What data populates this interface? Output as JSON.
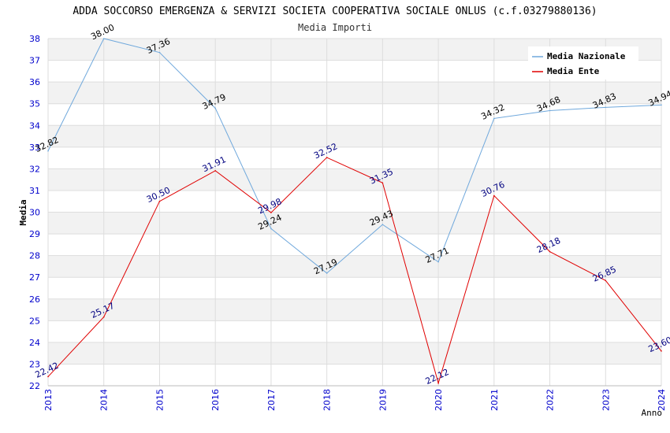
{
  "chart_data": {
    "type": "line",
    "title": "ADDA SOCCORSO EMERGENZA & SERVIZI SOCIETA COOPERATIVA SOCIALE ONLUS (c.f.03279880136)",
    "subtitle": "Media Importi",
    "xlabel": "Anno",
    "ylabel": "Media",
    "ylim": [
      22,
      38
    ],
    "yticks": [
      "22",
      "23",
      "24",
      "25",
      "26",
      "27",
      "28",
      "29",
      "30",
      "31",
      "32",
      "33",
      "34",
      "35",
      "36",
      "37",
      "38"
    ],
    "categories": [
      "2013",
      "2014",
      "2015",
      "2016",
      "2017",
      "2018",
      "2019",
      "2020",
      "2021",
      "2022",
      "2023",
      "2024"
    ],
    "legend_position": "top-right",
    "grid": true,
    "series": [
      {
        "name": "Media Nazionale",
        "color": "#6fa8dc",
        "label_color": "#000000",
        "values": [
          32.82,
          38.0,
          37.36,
          34.79,
          29.24,
          27.19,
          29.43,
          27.71,
          34.32,
          34.68,
          34.83,
          34.94
        ],
        "labels": [
          "32.82",
          "38.00",
          "37.36",
          "34.79",
          "29.24",
          "27.19",
          "29.43",
          "27.71",
          "34.32",
          "34.68",
          "34.83",
          "34.94"
        ]
      },
      {
        "name": "Media Ente",
        "color": "#e00000",
        "label_color": "#000080",
        "values": [
          22.42,
          25.17,
          30.5,
          31.91,
          29.98,
          32.52,
          31.35,
          22.12,
          30.76,
          28.18,
          26.85,
          23.6
        ],
        "labels": [
          "22.42",
          "25.17",
          "30.50",
          "31.91",
          "29.98",
          "32.52",
          "31.35",
          "22.12",
          "30.76",
          "28.18",
          "26.85",
          "23.60"
        ]
      }
    ]
  },
  "colors": {
    "band": "#f2f2f2",
    "grid": "#dddddd",
    "axis_tick_text": "#0000cc",
    "title_text": "#000000"
  }
}
